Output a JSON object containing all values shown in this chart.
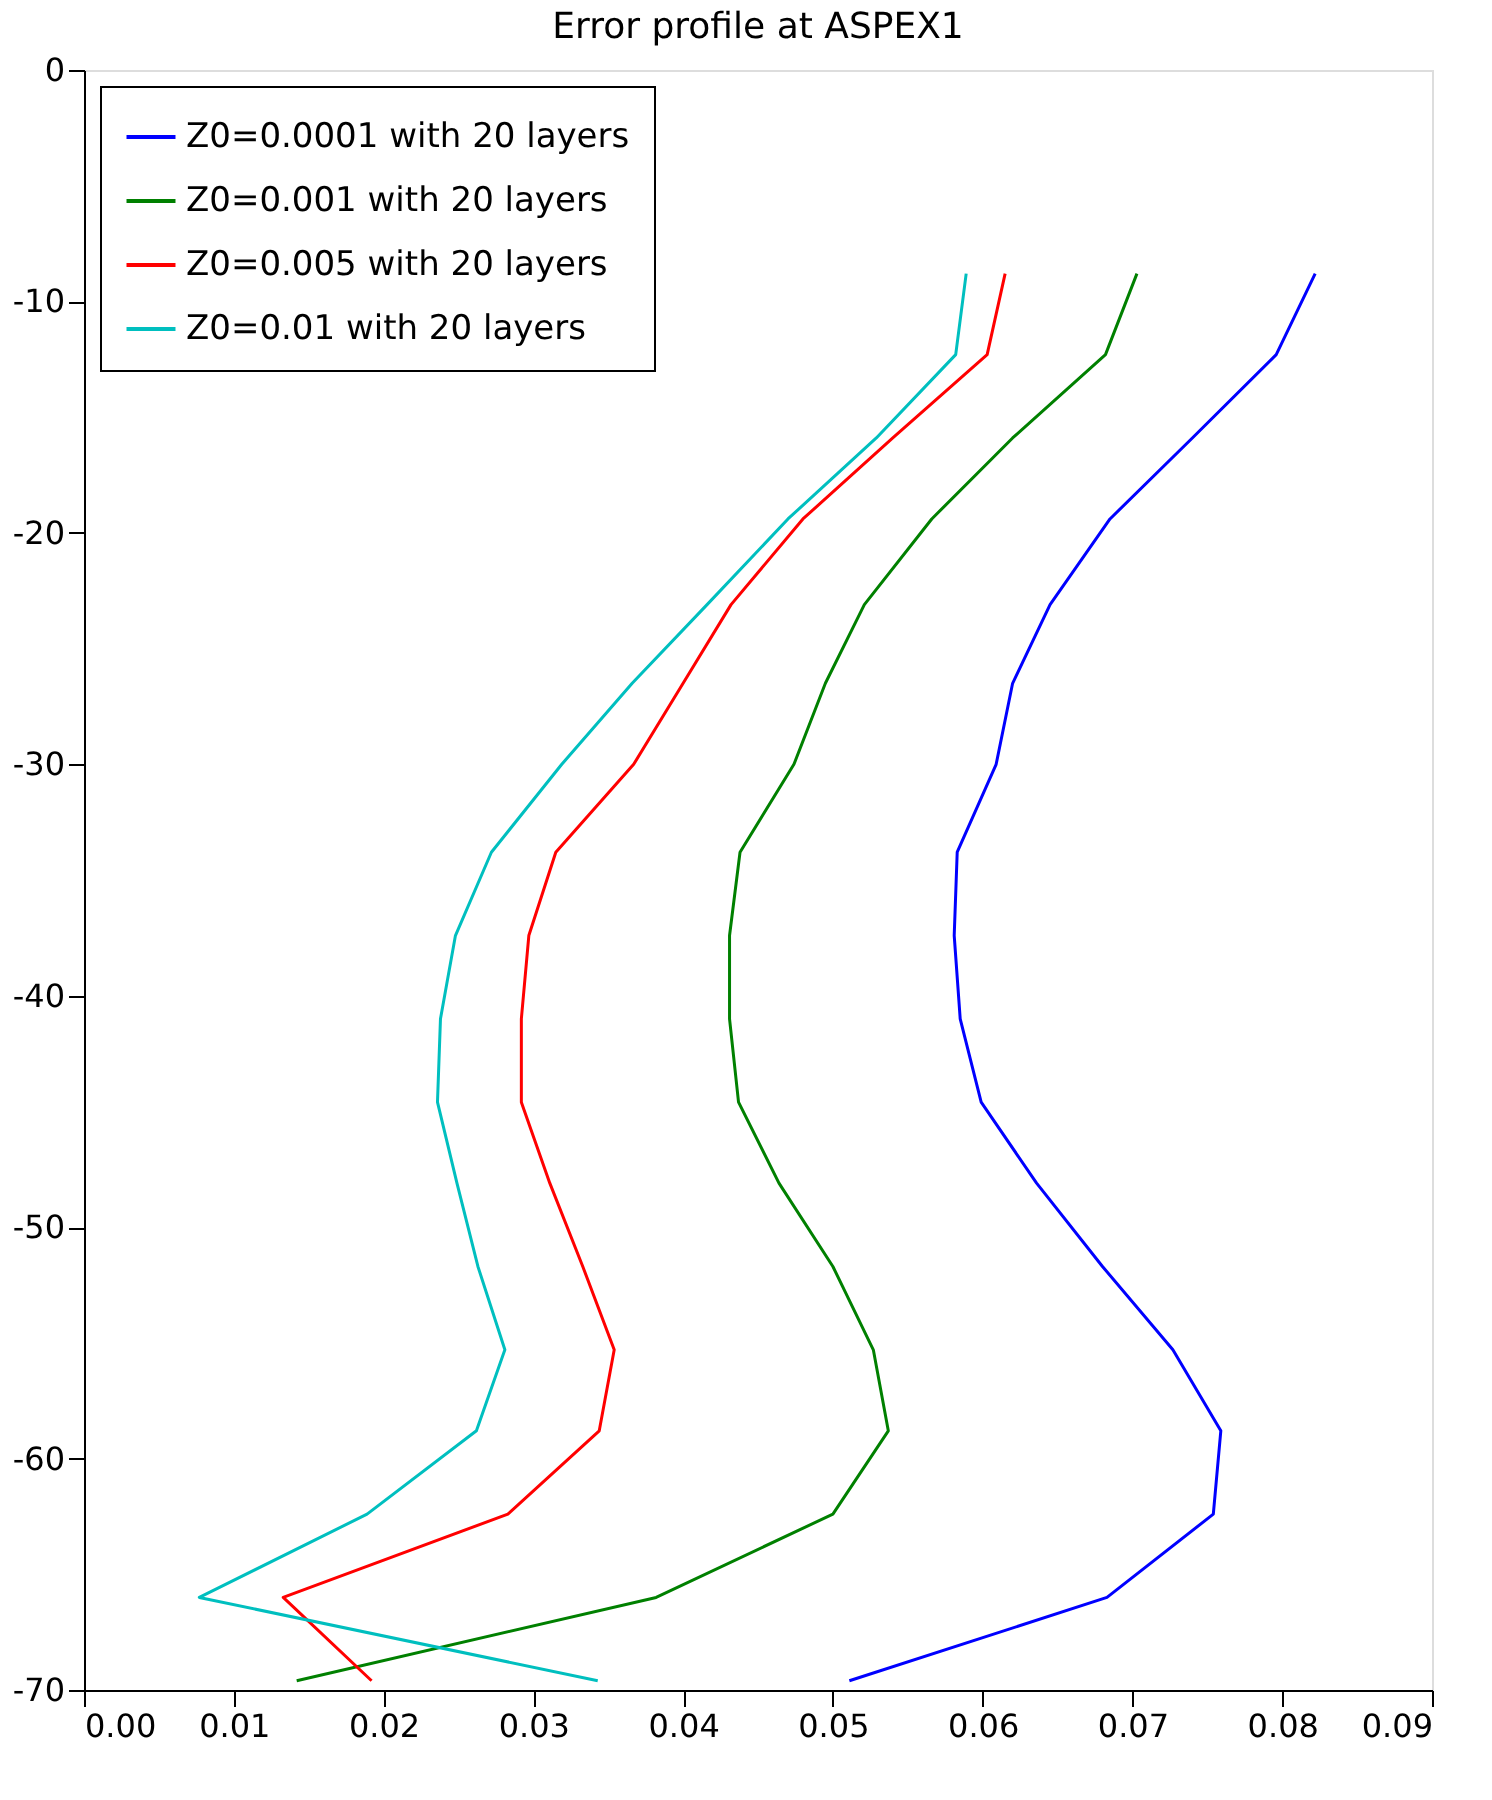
{
  "chart_data": {
    "type": "line",
    "title": "Error profile at ASPEX1",
    "series": [
      {
        "name": "Z0=0.0001 with 20 layers",
        "color": "#0000ff",
        "x": [
          0.0822,
          0.0796,
          0.074,
          0.0685,
          0.0645,
          0.062,
          0.0609,
          0.0583,
          0.0581,
          0.0585,
          0.0599,
          0.0636,
          0.068,
          0.0727,
          0.0759,
          0.0754,
          0.0683,
          0.0511
        ],
        "values": [
          -8.8,
          -12.3,
          -15.9,
          -19.4,
          -23.1,
          -26.5,
          -30,
          -33.8,
          -37.4,
          -41,
          -44.6,
          -48.1,
          -51.7,
          -55.3,
          -58.8,
          -62.4,
          -66,
          -69.6
        ]
      },
      {
        "name": "Z0=0.001 with 20 layers",
        "color": "#008000",
        "x": [
          0.0703,
          0.0682,
          0.062,
          0.0566,
          0.0521,
          0.0495,
          0.0474,
          0.0438,
          0.0431,
          0.0431,
          0.0437,
          0.0464,
          0.05,
          0.0527,
          0.0537,
          0.05,
          0.0382,
          0.0142
        ],
        "values": [
          -8.8,
          -12.3,
          -15.9,
          -19.4,
          -23.1,
          -26.5,
          -30,
          -33.8,
          -37.4,
          -41,
          -44.6,
          -48.1,
          -51.7,
          -55.3,
          -58.8,
          -62.4,
          -66,
          -69.6
        ]
      },
      {
        "name": "Z0=0.005 with 20 layers",
        "color": "#ff0000",
        "x": [
          0.0615,
          0.0603,
          0.054,
          0.048,
          0.0432,
          0.04,
          0.0367,
          0.0315,
          0.0297,
          0.0292,
          0.0292,
          0.0311,
          0.0333,
          0.0354,
          0.0344,
          0.0283,
          0.0133,
          0.0192
        ],
        "values": [
          -8.8,
          -12.3,
          -15.9,
          -19.4,
          -23.1,
          -26.5,
          -30,
          -33.8,
          -37.4,
          -41,
          -44.6,
          -48.1,
          -51.7,
          -55.3,
          -58.8,
          -62.4,
          -66,
          -69.6
        ]
      },
      {
        "name": "Z0=0.01 with 20 layers",
        "color": "#00bfbf",
        "x": [
          0.0589,
          0.0582,
          0.0529,
          0.047,
          0.0416,
          0.0366,
          0.0319,
          0.0272,
          0.0248,
          0.0238,
          0.0236,
          0.0249,
          0.0263,
          0.0281,
          0.0262,
          0.0189,
          0.0077,
          0.0343
        ],
        "values": [
          -8.8,
          -12.3,
          -15.9,
          -19.4,
          -23.1,
          -26.5,
          -30,
          -33.8,
          -37.4,
          -41,
          -44.6,
          -48.1,
          -51.7,
          -55.3,
          -58.8,
          -62.4,
          -66,
          -69.6
        ]
      }
    ],
    "xlim": [
      0,
      0.09
    ],
    "xticks": [
      {
        "value": 0,
        "label": "0.00"
      },
      {
        "value": 0.01,
        "label": "0.01"
      },
      {
        "value": 0.02,
        "label": "0.02"
      },
      {
        "value": 0.03,
        "label": "0.03"
      },
      {
        "value": 0.04,
        "label": "0.04"
      },
      {
        "value": 0.05,
        "label": "0.05"
      },
      {
        "value": 0.06,
        "label": "0.06"
      },
      {
        "value": 0.07,
        "label": "0.07"
      },
      {
        "value": 0.08,
        "label": "0.08"
      },
      {
        "value": 0.09,
        "label": "0.09"
      }
    ],
    "ylim": [
      -70,
      0
    ],
    "yticks": [
      -70,
      -60,
      -50,
      -40,
      -30,
      -20,
      -10,
      0
    ],
    "grid": false,
    "legend": "top left",
    "marker": "none",
    "line_style": "solid"
  }
}
